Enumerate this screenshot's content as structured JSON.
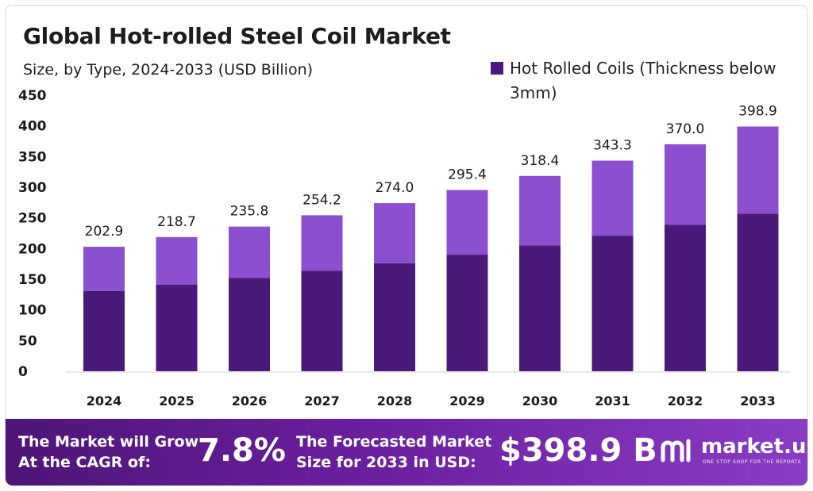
{
  "header": {
    "title": "Global Hot-rolled Steel Coil Market",
    "subtitle": "Size, by Type, 2024-2033 (USD Billion)"
  },
  "legend": {
    "line1": "Hot Rolled Coils (Thickness below",
    "line2": "3mm)"
  },
  "colors": {
    "series_dark": "#4a1a7a",
    "series_light": "#8b4fcf",
    "banner_start": "#4e1577",
    "banner_end": "#8a3cc5"
  },
  "chart_data": {
    "type": "bar",
    "stacked": true,
    "categories": [
      "2024",
      "2025",
      "2026",
      "2027",
      "2028",
      "2029",
      "2030",
      "2031",
      "2032",
      "2033"
    ],
    "series": [
      {
        "name": "Hot Rolled Coils (Thickness below 3mm)",
        "values": [
          131,
          141,
          152,
          164,
          176,
          190,
          205,
          221,
          239,
          257
        ]
      },
      {
        "values": [
          71.9,
          77.7,
          83.8,
          90.2,
          98.0,
          105.4,
          113.4,
          122.3,
          131.0,
          141.9
        ]
      }
    ],
    "totals": [
      202.9,
      218.7,
      235.8,
      254.2,
      274.0,
      295.4,
      318.4,
      343.3,
      370.0,
      398.9
    ],
    "total_labels": [
      "202.9",
      "218.7",
      "235.8",
      "254.2",
      "274.0",
      "295.4",
      "318.4",
      "343.3",
      "370.0",
      "398.9"
    ],
    "yticks": [
      "0",
      "50",
      "100",
      "150",
      "200",
      "250",
      "300",
      "350",
      "400",
      "450"
    ],
    "ylim": [
      0,
      450
    ],
    "grid": false,
    "legend_position": "top-right"
  },
  "banner": {
    "cagr_line1": "The Market will Grow",
    "cagr_line2": "At the CAGR of:",
    "cagr_value": "7.8%",
    "forecast_line1": "The Forecasted Market",
    "forecast_line2": "Size for 2033 in USD:",
    "forecast_value": "$398.9 B",
    "brand_name": "market.us",
    "brand_tagline": "ONE STOP SHOP FOR THE REPORTS"
  }
}
